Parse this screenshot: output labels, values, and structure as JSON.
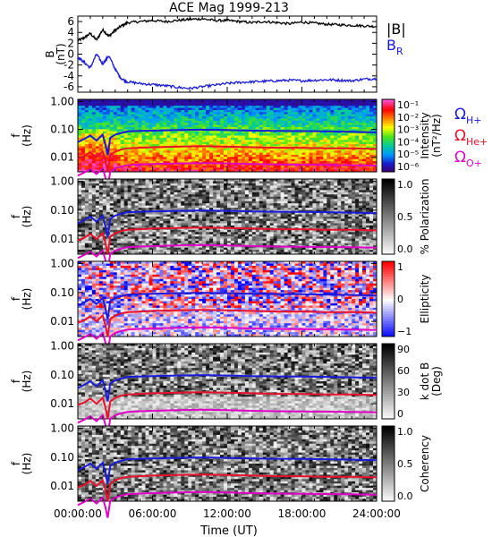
{
  "title": "ACE Mag 1999-213",
  "colors": {
    "black": "#000000",
    "blue": "#1a1adb",
    "red": "#e8102a",
    "magenta": "#e000c8"
  },
  "legend": {
    "B_abs": "|B|",
    "B_R_main": "B",
    "B_R_sub": "R"
  },
  "gyro_labels": [
    {
      "main": "Ω",
      "sub": "H+",
      "color": "#1a1adb"
    },
    {
      "main": "Ω",
      "sub": "He+",
      "color": "#e8102a"
    },
    {
      "main": "Ω",
      "sub": "O+",
      "color": "#e000c8"
    }
  ],
  "x_axis": {
    "title": "Time (UT)",
    "tick_labels": [
      "00:00:00",
      "06:00:00",
      "12:00:00",
      "18:00:00",
      "24:00:00"
    ],
    "range_hours": [
      0,
      24
    ]
  },
  "chart_data": [
    {
      "type": "line",
      "ylabel_main": "B",
      "ylabel_unit": "(nT)",
      "ylim": [
        -7,
        7
      ],
      "y_ticks": [
        6,
        4,
        2,
        0,
        -2,
        -4,
        -6
      ],
      "series": [
        {
          "name": "|B|",
          "color": "#000000",
          "x": [
            0,
            0.5,
            1,
            1.5,
            2,
            2.5,
            3,
            3.5,
            4,
            5,
            6,
            7,
            8,
            9,
            10,
            11,
            12,
            13,
            14,
            15,
            16,
            17,
            18,
            19,
            20,
            21,
            22,
            23,
            24
          ],
          "y": [
            2.5,
            3.0,
            3.8,
            2.6,
            4.5,
            3.3,
            4.4,
            5.2,
            5.8,
            6.0,
            6.2,
            6.0,
            6.2,
            6.4,
            6.5,
            6.2,
            6.2,
            6.0,
            5.8,
            6.0,
            5.8,
            5.6,
            5.9,
            5.7,
            5.5,
            5.4,
            5.3,
            5.2,
            5.1
          ]
        },
        {
          "name": "B_R",
          "color": "#1a1adb",
          "x": [
            0,
            0.5,
            1,
            1.5,
            2,
            2.5,
            3,
            3.5,
            4,
            5,
            6,
            7,
            8,
            9,
            10,
            11,
            12,
            13,
            14,
            15,
            16,
            17,
            18,
            19,
            20,
            21,
            22,
            23,
            24
          ],
          "y": [
            -0.5,
            -1.5,
            -2.5,
            0.0,
            -1.8,
            -0.3,
            -2.8,
            -4.5,
            -5.1,
            -5.4,
            -5.6,
            -5.8,
            -6.1,
            -6.3,
            -6.0,
            -5.7,
            -5.4,
            -5.2,
            -5.1,
            -5.0,
            -4.9,
            -4.8,
            -4.9,
            -4.8,
            -4.7,
            -4.8,
            -4.9,
            -4.6,
            -4.5
          ]
        }
      ]
    },
    {
      "type": "heatmap",
      "ylabel_main": "f",
      "ylabel_unit": "(Hz)",
      "y_scale": "log",
      "ylim": [
        0.003,
        1.2
      ],
      "y_ticks": [
        1.0,
        0.1,
        0.01
      ],
      "y_tick_labels": [
        "1.00",
        "0.10",
        "0.01"
      ],
      "colorbar": {
        "label": "Intensity",
        "unit": "(nT²/Hz)",
        "ticks": [
          "10⁻¹",
          "10⁻²",
          "10⁻³",
          "10⁻⁴",
          "10⁻⁵",
          "10⁻⁶"
        ]
      },
      "style": "rainbow"
    },
    {
      "type": "heatmap",
      "ylabel_main": "f",
      "ylabel_unit": "(Hz)",
      "y_scale": "log",
      "y_tick_labels": [
        "1.00",
        "0.10",
        "0.01"
      ],
      "colorbar": {
        "label": "% Polarization",
        "unit": "",
        "ticks": [
          "1.0",
          "0.5",
          "0.0"
        ]
      },
      "style": "gray"
    },
    {
      "type": "heatmap",
      "ylabel_main": "f",
      "ylabel_unit": "(Hz)",
      "y_scale": "log",
      "y_tick_labels": [
        "1.00",
        "0.10",
        "0.01"
      ],
      "colorbar": {
        "label": "Ellipticity",
        "unit": "",
        "ticks": [
          "1",
          "0",
          "−1"
        ]
      },
      "style": "bwr"
    },
    {
      "type": "heatmap",
      "ylabel_main": "f",
      "ylabel_unit": "(Hz)",
      "y_scale": "log",
      "y_tick_labels": [
        "1.00",
        "0.10",
        "0.01"
      ],
      "colorbar": {
        "label": "k dot B",
        "unit": "(Deg)",
        "ticks": [
          "90",
          "60",
          "30",
          "0"
        ]
      },
      "style": "gray"
    },
    {
      "type": "heatmap",
      "ylabel_main": "f",
      "ylabel_unit": "(Hz)",
      "y_scale": "log",
      "y_tick_labels": [
        "1.00",
        "0.10",
        "0.01"
      ],
      "colorbar": {
        "label": "Coherency",
        "unit": "",
        "ticks": [
          "1.0",
          "0.5",
          "0.0"
        ]
      },
      "style": "gray"
    }
  ],
  "gyro_curves": {
    "x": [
      0,
      0.5,
      1.0,
      1.5,
      2.0,
      2.2,
      2.4,
      2.6,
      3.0,
      3.5,
      4.0,
      5.0,
      6.0,
      8.0,
      10.0,
      12.0,
      14.0,
      16.0,
      18.0,
      20.0,
      22.0,
      24.0
    ],
    "H_plus": [
      0.035,
      0.045,
      0.06,
      0.04,
      0.065,
      0.03,
      0.012,
      0.05,
      0.065,
      0.075,
      0.085,
      0.088,
      0.09,
      0.095,
      0.098,
      0.095,
      0.09,
      0.088,
      0.087,
      0.085,
      0.082,
      0.078
    ],
    "He_plus": [
      0.009,
      0.011,
      0.015,
      0.01,
      0.016,
      0.008,
      0.003,
      0.012,
      0.016,
      0.019,
      0.021,
      0.022,
      0.023,
      0.024,
      0.025,
      0.024,
      0.023,
      0.022,
      0.022,
      0.021,
      0.021,
      0.02
    ],
    "O_plus": [
      0.0022,
      0.0028,
      0.0037,
      0.0025,
      0.004,
      0.002,
      0.0008,
      0.003,
      0.004,
      0.0047,
      0.0052,
      0.0055,
      0.0057,
      0.006,
      0.0062,
      0.006,
      0.0057,
      0.0055,
      0.0054,
      0.0053,
      0.0052,
      0.005
    ]
  }
}
